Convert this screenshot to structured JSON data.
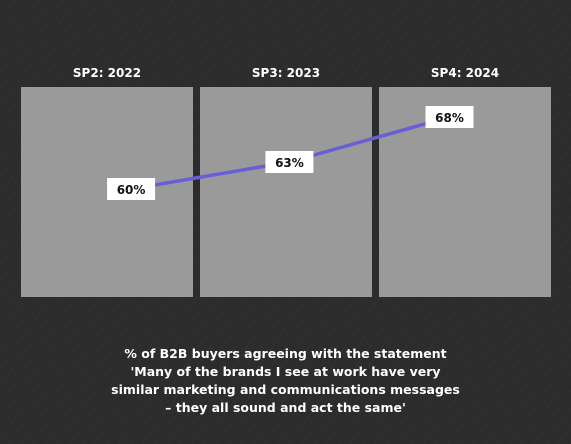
{
  "colors": {
    "background": "#2c2c2c",
    "panel": "#9a9a9a",
    "line": "#6a5ed8",
    "label_box": "#ffffff",
    "text_light": "#ffffff",
    "text_dark": "#111111"
  },
  "chart_data": {
    "type": "line",
    "categories": [
      "SP2: 2022",
      "SP3: 2023",
      "SP4: 2024"
    ],
    "values": [
      60,
      63,
      68
    ],
    "data_labels": [
      "60%",
      "63%",
      "68%"
    ],
    "unit": "%",
    "grid": false,
    "legend": "none"
  },
  "caption": {
    "lines": [
      "% of B2B buyers agreeing with the statement",
      "'Many of the brands I see at work have very",
      "similar marketing and communications messages",
      "– they all sound and act the same'"
    ]
  }
}
